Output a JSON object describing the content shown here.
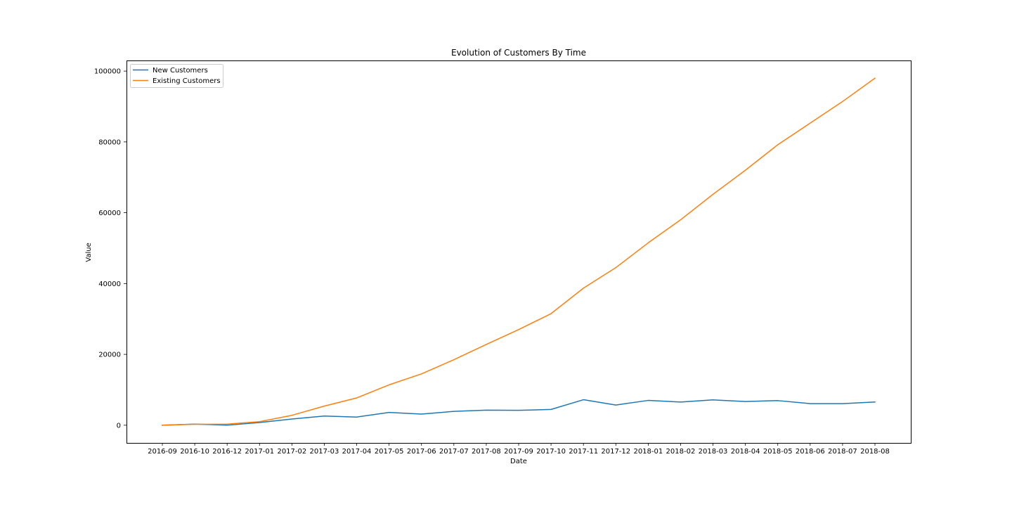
{
  "chart_data": {
    "type": "line",
    "title": "Evolution of Customers By Time",
    "xlabel": "Date",
    "ylabel": "Value",
    "x_tick_labels": [
      "2016-09",
      "2016-10",
      "2016-12",
      "2017-01",
      "2017-02",
      "2017-03",
      "2017-04",
      "2017-05",
      "2017-06",
      "2017-07",
      "2017-08",
      "2017-09",
      "2017-10",
      "2017-11",
      "2017-12",
      "2018-01",
      "2018-02",
      "2018-03",
      "2018-04",
      "2018-05",
      "2018-06",
      "2018-07",
      "2018-08"
    ],
    "y_ticks": [
      0,
      20000,
      40000,
      60000,
      80000,
      100000
    ],
    "ylim": [
      -5000,
      103000
    ],
    "grid": false,
    "legend_position": "upper-left",
    "series": [
      {
        "name": "New Customers",
        "color": "#1f77b4",
        "x": [
          "2016-09",
          "2016-10",
          "2016-12",
          "2017-01",
          "2017-02",
          "2017-03",
          "2017-04",
          "2017-05",
          "2017-06",
          "2017-07",
          "2017-08",
          "2017-09",
          "2017-10",
          "2017-11",
          "2017-12",
          "2018-01",
          "2018-02",
          "2018-03",
          "2018-04",
          "2018-05",
          "2018-06",
          "2018-07",
          "2018-08"
        ],
        "values": [
          0,
          300,
          0,
          750,
          1750,
          2600,
          2300,
          3600,
          3150,
          3900,
          4250,
          4200,
          4450,
          7200,
          5700,
          7000,
          6550,
          7150,
          6700,
          6950,
          6100,
          6100,
          6550
        ]
      },
      {
        "name": "Existing Customers",
        "color": "#ff7f0e",
        "x": [
          "2016-09",
          "2016-10",
          "2016-12",
          "2017-01",
          "2017-02",
          "2017-03",
          "2017-04",
          "2017-05",
          "2017-06",
          "2017-07",
          "2017-08",
          "2017-09",
          "2017-10",
          "2017-11",
          "2017-12",
          "2018-01",
          "2018-02",
          "2018-03",
          "2018-04",
          "2018-05",
          "2018-06",
          "2018-07",
          "2018-08"
        ],
        "values": [
          0,
          250,
          300,
          1000,
          2800,
          5400,
          7700,
          11400,
          14500,
          18500,
          22800,
          27000,
          31500,
          38700,
          44500,
          51500,
          58000,
          65200,
          72000,
          79200,
          85300,
          91400,
          98000
        ]
      }
    ]
  }
}
